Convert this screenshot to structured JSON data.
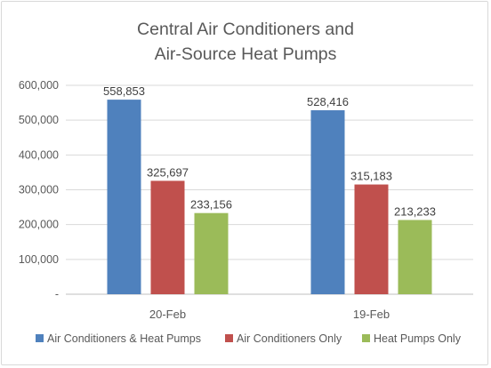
{
  "chart_data": {
    "type": "bar",
    "title_lines": [
      "Central Air Conditioners and",
      "Air-Source Heat Pumps"
    ],
    "categories": [
      "20-Feb",
      "19-Feb"
    ],
    "series": [
      {
        "name": "Air Conditioners & Heat Pumps",
        "values": [
          558853,
          528416
        ],
        "labels": [
          "558,853",
          "528,416"
        ],
        "color": "#4f81bd"
      },
      {
        "name": "Air Conditioners Only",
        "values": [
          325697,
          315183
        ],
        "labels": [
          "325,697",
          "315,183"
        ],
        "color": "#c0504d"
      },
      {
        "name": "Heat Pumps Only",
        "values": [
          233156,
          213233
        ],
        "labels": [
          "233,156",
          "213,233"
        ],
        "color": "#9bbb59"
      }
    ],
    "yticks": [
      0,
      100000,
      200000,
      300000,
      400000,
      500000,
      600000
    ],
    "ytick_labels": [
      "-",
      "100,000",
      "200,000",
      "300,000",
      "400,000",
      "500,000",
      "600,000"
    ],
    "ylim": [
      0,
      600000
    ],
    "grid": true,
    "legend_position": "bottom",
    "xlabel": "",
    "ylabel": ""
  }
}
